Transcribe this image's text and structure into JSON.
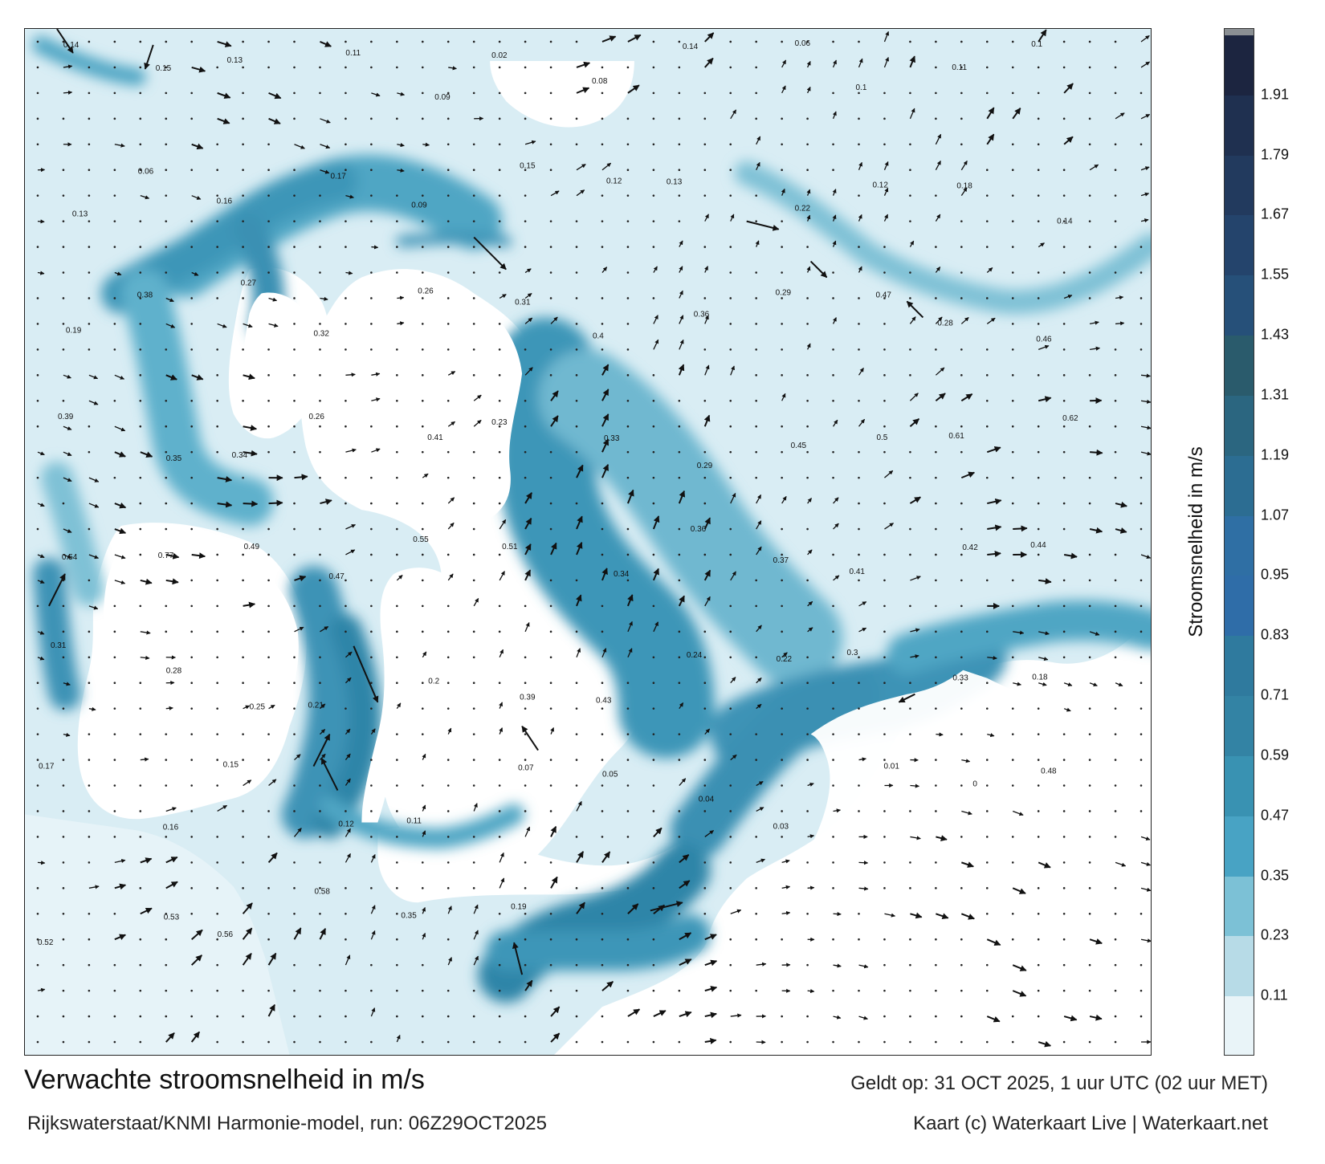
{
  "title": "Verwachte stroomsnelheid in m/s",
  "model_run": "Rijkswaterstaat/KNMI Harmonie-model, run: 06Z29OCT2025",
  "valid_time": "Geldt op: 31 OCT 2025, 1 uur UTC (02 uur MET)",
  "credit": "Kaart (c) Waterkaart Live | Waterkaart.net",
  "colorbar": {
    "label": "Stroomsnelheid in m/s",
    "ticks": [
      "1.91",
      "1.79",
      "1.67",
      "1.55",
      "1.43",
      "1.31",
      "1.19",
      "1.07",
      "0.95",
      "0.83",
      "0.71",
      "0.59",
      "0.47",
      "0.35",
      "0.23",
      "0.11"
    ],
    "colors_top_to_bottom": [
      "#1c2540",
      "#1f3050",
      "#223a5e",
      "#24446c",
      "#265079",
      "#2a5b6c",
      "#2b6680",
      "#2c6d92",
      "#2f6fa4",
      "#2f6da8",
      "#2f7a9e",
      "#3383a4",
      "#3992b2",
      "#48a3c4",
      "#7cc1d6",
      "#b7dbe7",
      "#e9f4f8"
    ]
  },
  "current_labels": [
    {
      "v": "0.14"
    },
    {
      "v": "0.15"
    },
    {
      "v": "0.13"
    },
    {
      "v": "0.11"
    },
    {
      "v": "0.09"
    },
    {
      "v": "0.02"
    },
    {
      "v": "0.08"
    },
    {
      "v": "0.14"
    },
    {
      "v": "0.06"
    },
    {
      "v": "0.1"
    },
    {
      "v": "0.11"
    },
    {
      "v": "0.1"
    },
    {
      "v": "0.13"
    },
    {
      "v": "0.06"
    },
    {
      "v": "0.16"
    },
    {
      "v": "0.17"
    },
    {
      "v": "0.09"
    },
    {
      "v": "0.15"
    },
    {
      "v": "0.12"
    },
    {
      "v": "0.13"
    },
    {
      "v": "0.22"
    },
    {
      "v": "0.12"
    },
    {
      "v": "0.18"
    },
    {
      "v": "0.14"
    },
    {
      "v": "0.19"
    },
    {
      "v": "0.38"
    },
    {
      "v": "0.27"
    },
    {
      "v": "0.32"
    },
    {
      "v": "0.26"
    },
    {
      "v": "0.31"
    },
    {
      "v": "0.4"
    },
    {
      "v": "0.36"
    },
    {
      "v": "0.29"
    },
    {
      "v": "0.47"
    },
    {
      "v": "0.28"
    },
    {
      "v": "0.46"
    },
    {
      "v": "0.39"
    },
    {
      "v": "0.35"
    },
    {
      "v": "0.34"
    },
    {
      "v": "0.26"
    },
    {
      "v": "0.41"
    },
    {
      "v": "0.23"
    },
    {
      "v": "0.33"
    },
    {
      "v": "0.29"
    },
    {
      "v": "0.45"
    },
    {
      "v": "0.5"
    },
    {
      "v": "0.61"
    },
    {
      "v": "0.62"
    },
    {
      "v": "0.54"
    },
    {
      "v": "0.77"
    },
    {
      "v": "0.49"
    },
    {
      "v": "0.47"
    },
    {
      "v": "0.55"
    },
    {
      "v": "0.51"
    },
    {
      "v": "0.34"
    },
    {
      "v": "0.36"
    },
    {
      "v": "0.37"
    },
    {
      "v": "0.41"
    },
    {
      "v": "0.42"
    },
    {
      "v": "0.44"
    },
    {
      "v": "0.31"
    },
    {
      "v": "0.28"
    },
    {
      "v": "0.25"
    },
    {
      "v": "0.21"
    },
    {
      "v": "0.2"
    },
    {
      "v": "0.39"
    },
    {
      "v": "0.43"
    },
    {
      "v": "0.24"
    },
    {
      "v": "0.22"
    },
    {
      "v": "0.3"
    },
    {
      "v": "0.33"
    },
    {
      "v": "0.18"
    },
    {
      "v": "0.17"
    },
    {
      "v": "0.16"
    },
    {
      "v": "0.15"
    },
    {
      "v": "0.12"
    },
    {
      "v": "0.11"
    },
    {
      "v": "0.07"
    },
    {
      "v": "0.05"
    },
    {
      "v": "0.04"
    },
    {
      "v": "0.03"
    },
    {
      "v": "0.01"
    },
    {
      "v": "0"
    },
    {
      "v": "0.48"
    },
    {
      "v": "0.52"
    },
    {
      "v": "0.53"
    },
    {
      "v": "0.56"
    },
    {
      "v": "0.58"
    },
    {
      "v": "0.35"
    },
    {
      "v": "0.19"
    }
  ]
}
